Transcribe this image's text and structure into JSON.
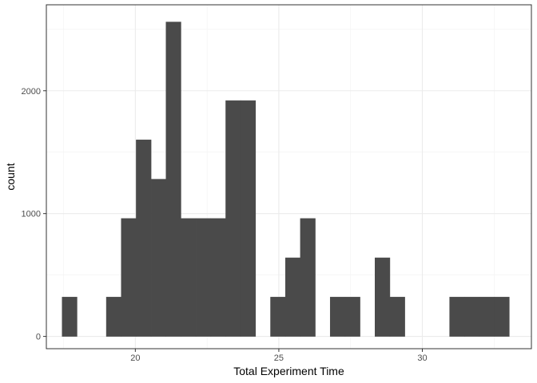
{
  "chart_data": {
    "type": "bar",
    "subtype": "histogram",
    "title": "",
    "xlabel": "Total Experiment Time",
    "ylabel": "count",
    "xlim": [
      16.9,
      33.8
    ],
    "ylim": [
      -100,
      2700
    ],
    "x_ticks": [
      20,
      25,
      30
    ],
    "y_ticks": [
      0,
      1000,
      2000
    ],
    "grid": true,
    "bar_color": "#4a4a4a",
    "bins": [
      {
        "x0": 17.45,
        "x1": 17.97,
        "count": 320
      },
      {
        "x0": 18.99,
        "x1": 19.51,
        "count": 320
      },
      {
        "x0": 19.51,
        "x1": 20.03,
        "count": 960
      },
      {
        "x0": 20.03,
        "x1": 20.55,
        "count": 1600
      },
      {
        "x0": 20.55,
        "x1": 21.07,
        "count": 1280
      },
      {
        "x0": 21.07,
        "x1": 21.59,
        "count": 2560
      },
      {
        "x0": 21.59,
        "x1": 22.11,
        "count": 960
      },
      {
        "x0": 22.11,
        "x1": 22.63,
        "count": 960
      },
      {
        "x0": 22.63,
        "x1": 23.15,
        "count": 960
      },
      {
        "x0": 23.15,
        "x1": 23.67,
        "count": 1920
      },
      {
        "x0": 23.67,
        "x1": 24.19,
        "count": 1920
      },
      {
        "x0": 24.71,
        "x1": 25.23,
        "count": 320
      },
      {
        "x0": 25.23,
        "x1": 25.75,
        "count": 640
      },
      {
        "x0": 25.75,
        "x1": 26.27,
        "count": 960
      },
      {
        "x0": 26.79,
        "x1": 27.31,
        "count": 320
      },
      {
        "x0": 27.31,
        "x1": 27.83,
        "count": 320
      },
      {
        "x0": 28.35,
        "x1": 28.87,
        "count": 640
      },
      {
        "x0": 28.87,
        "x1": 29.39,
        "count": 320
      },
      {
        "x0": 30.95,
        "x1": 31.47,
        "count": 320
      },
      {
        "x0": 31.47,
        "x1": 31.99,
        "count": 320
      },
      {
        "x0": 31.99,
        "x1": 32.51,
        "count": 320
      },
      {
        "x0": 32.51,
        "x1": 33.03,
        "count": 320
      }
    ]
  }
}
